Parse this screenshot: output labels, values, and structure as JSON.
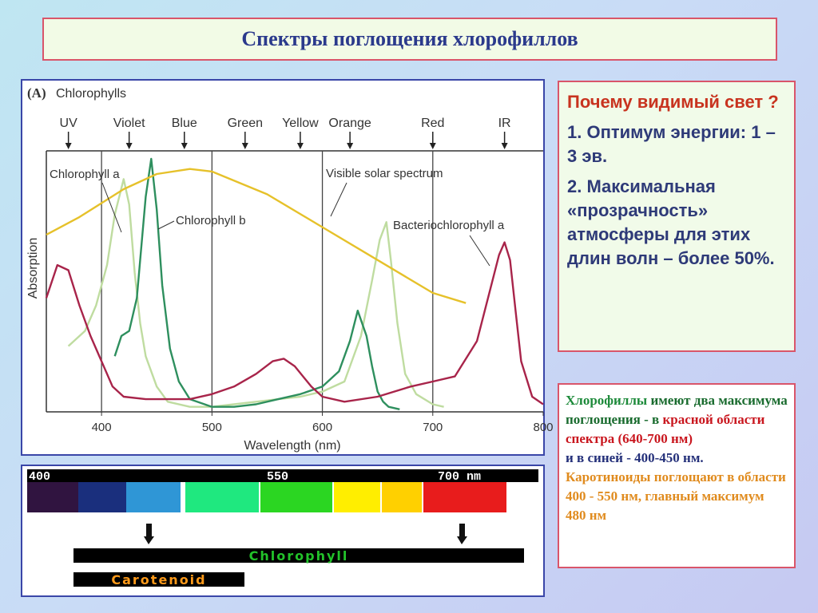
{
  "slide": {
    "title": "Спектры поглощения хлорофиллов"
  },
  "why_box": {
    "question": "Почему видимый свет ?",
    "point1": "1. Оптимум энергии: 1 – 3 эв.",
    "point2": "2. Максимальная «прозрачность» атмосферы для этих длин волн – более 50%."
  },
  "info_box": {
    "s1_green": "Хлорофиллы",
    "s1_rest": " имеют два максимума поглощения - в ",
    "s2_red": "красной области спектра (640-700 нм)",
    "s3_navy": "и в синей - 400-450 нм.",
    "s4_orange": "Каротиноиды поглощают в области 400 - 550 нм, главный максимум 480 нм"
  },
  "chart_data": {
    "type": "line",
    "panel_label": "(A)",
    "title": "Chlorophylls",
    "xlabel": "Wavelength (nm)",
    "ylabel": "Absorption",
    "xlim": [
      350,
      800
    ],
    "ylim": [
      0,
      1
    ],
    "x_ticks": [
      400,
      500,
      600,
      700,
      800
    ],
    "region_markers": [
      {
        "label": "UV",
        "x": 370
      },
      {
        "label": "Violet",
        "x": 425
      },
      {
        "label": "Blue",
        "x": 475
      },
      {
        "label": "Green",
        "x": 530
      },
      {
        "label": "Yellow",
        "x": 580
      },
      {
        "label": "Orange",
        "x": 625
      },
      {
        "label": "Red",
        "x": 700
      },
      {
        "label": "IR",
        "x": 765
      }
    ],
    "vlines": [
      400,
      500,
      600,
      700
    ],
    "series": [
      {
        "name": "Chlorophyll a",
        "color": "#bfdca0",
        "x": [
          370,
          385,
          395,
          405,
          412,
          420,
          425,
          430,
          435,
          440,
          450,
          460,
          480,
          500,
          520,
          540,
          560,
          580,
          600,
          620,
          635,
          645,
          652,
          658,
          662,
          668,
          675,
          685,
          700,
          710
        ],
        "y": [
          0.26,
          0.32,
          0.42,
          0.58,
          0.78,
          0.92,
          0.82,
          0.55,
          0.35,
          0.22,
          0.1,
          0.04,
          0.02,
          0.02,
          0.03,
          0.04,
          0.05,
          0.06,
          0.08,
          0.12,
          0.3,
          0.52,
          0.68,
          0.75,
          0.6,
          0.35,
          0.15,
          0.07,
          0.03,
          0.02
        ]
      },
      {
        "name": "Chlorophyll b",
        "color": "#2e8f5e",
        "x": [
          412,
          418,
          425,
          432,
          440,
          445,
          450,
          455,
          462,
          470,
          480,
          500,
          520,
          540,
          560,
          580,
          600,
          615,
          625,
          632,
          640,
          645,
          650,
          655,
          660,
          670
        ],
        "y": [
          0.22,
          0.3,
          0.32,
          0.45,
          0.85,
          1.0,
          0.8,
          0.5,
          0.25,
          0.12,
          0.05,
          0.02,
          0.02,
          0.03,
          0.05,
          0.07,
          0.1,
          0.16,
          0.28,
          0.4,
          0.3,
          0.18,
          0.08,
          0.04,
          0.02,
          0.01
        ]
      },
      {
        "name": "Bacteriochlorophyll a",
        "color": "#a8244a",
        "x": [
          350,
          360,
          370,
          380,
          390,
          400,
          410,
          420,
          440,
          460,
          480,
          500,
          520,
          540,
          555,
          565,
          575,
          590,
          600,
          620,
          650,
          680,
          700,
          720,
          740,
          750,
          760,
          765,
          770,
          775,
          780,
          790,
          800
        ],
        "y": [
          0.45,
          0.58,
          0.56,
          0.42,
          0.3,
          0.2,
          0.1,
          0.06,
          0.05,
          0.05,
          0.05,
          0.07,
          0.1,
          0.15,
          0.2,
          0.21,
          0.18,
          0.1,
          0.06,
          0.04,
          0.06,
          0.1,
          0.12,
          0.14,
          0.28,
          0.45,
          0.62,
          0.67,
          0.6,
          0.4,
          0.2,
          0.06,
          0.03
        ]
      },
      {
        "name": "Visible solar spectrum",
        "color": "#e6c12a",
        "x": [
          350,
          380,
          420,
          450,
          480,
          500,
          550,
          600,
          650,
          700,
          730
        ],
        "y": [
          0.7,
          0.77,
          0.88,
          0.94,
          0.96,
          0.95,
          0.86,
          0.73,
          0.6,
          0.47,
          0.43
        ]
      }
    ],
    "annotations": [
      {
        "text": "Chlorophyll a",
        "italic_suffix": "a",
        "points_to": 420
      },
      {
        "text": "Chlorophyll b",
        "points_to": 450
      },
      {
        "text": "Visible solar spectrum",
        "points_to": 600
      },
      {
        "text": "Bacteriochlorophyll a",
        "points_to": 765
      }
    ]
  },
  "spectrum_band": {
    "scale_labels": [
      "400",
      "550",
      "700 nm"
    ],
    "colors": [
      "#301440",
      "#1a2f7d",
      "#2f96d6",
      "#1fe87f",
      "#2bd622",
      "#ffee00",
      "#ffd000",
      "#e81c1c"
    ],
    "chlorophyll_label": "Chlorophyll",
    "carotenoid_label": "Carotenoid",
    "chlorophyll_color": "#22c22a",
    "carotenoid_color": "#ff9a1a"
  }
}
